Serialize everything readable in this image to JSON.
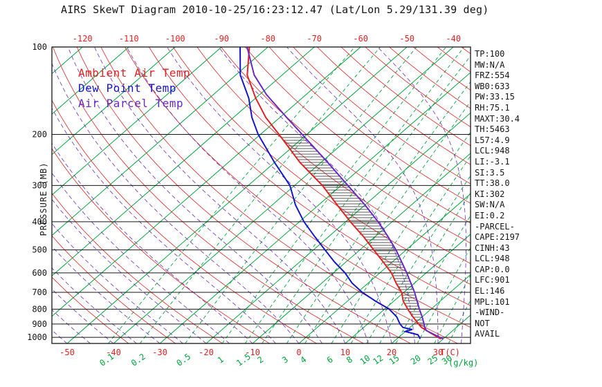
{
  "title": "AIRS SkewT Diagram 2010-10-25/16:23:12.47 (Lat/Lon 5.29/131.39 deg)",
  "legend": {
    "ambient": "Ambient Air Temp",
    "dew": "Dew Point Temp",
    "parcel": "Air Parcel Temp"
  },
  "axis": {
    "pressure_label": "PRESSURE (MB)",
    "temp_unit": "T(C)",
    "mixing_unit": "(g/kg)"
  },
  "stats_panel": {
    "lines": [
      "TP:100",
      "MW:N/A",
      "FRZ:554",
      "WB0:633",
      "PW:33.15",
      "RH:75.1",
      "MAXT:30.4",
      "TH:5463",
      "L57:4.9",
      "LCL:948",
      "LI:-3.1",
      "SI:3.5",
      "TT:38.0",
      "KI:302",
      "SW:N/A",
      "EI:0.2",
      "-PARCEL-",
      "CAPE:2197",
      "CINH:43",
      "LCL:948",
      "CAP:0.0",
      "LFC:901",
      "EL:146",
      "MPL:101",
      "-WIND-",
      "NOT",
      "AVAIL"
    ]
  },
  "colors": {
    "green": "#00a53c",
    "red": "#e02222",
    "blue": "#1515cd",
    "purple": "#6a28c4",
    "black": "#151515",
    "hatch": "#222222",
    "title": "#151515"
  },
  "chart_data": {
    "type": "line",
    "subtype": "skewt-logp",
    "title": "AIRS SkewT Diagram 2010-10-25/16:23:12.47 (Lat/Lon 5.29/131.39 deg)",
    "pressure_axis": {
      "label": "PRESSURE (MB)",
      "scale": "log",
      "range": [
        100,
        1050
      ],
      "ticks": [
        100,
        200,
        300,
        400,
        500,
        600,
        700,
        800,
        900,
        1000
      ]
    },
    "temp_axis": {
      "unit": "T(C)",
      "top_labels": [
        -120,
        -110,
        -100,
        -90,
        -80,
        -70,
        -60,
        -50,
        -40
      ],
      "bottom_labels": [
        -50,
        -40,
        -30,
        -20,
        -10,
        0,
        10,
        20,
        30
      ],
      "isotherm_range": [
        -160,
        40
      ],
      "isotherm_step": 10
    },
    "mixing_ratio_axis": {
      "unit": "(g/kg)",
      "values": [
        0.1,
        0.2,
        0.5,
        1,
        1.5,
        2,
        3,
        4,
        6,
        8,
        10,
        12,
        15,
        20,
        25,
        30
      ]
    },
    "dry_adiabats": {
      "range": [
        -40,
        190
      ],
      "step": 10
    },
    "moist_adiabats": {
      "range": [
        -60,
        35
      ],
      "step": 5
    },
    "cape_hatch": {
      "p_top": 205,
      "p_bottom": 945
    },
    "series": [
      {
        "name": "Ambient Air Temp",
        "color_key": "red",
        "points": [
          [
            1013,
            29.5
          ],
          [
            1000,
            28.5
          ],
          [
            975,
            26.5
          ],
          [
            950,
            24.5
          ],
          [
            925,
            22.5
          ],
          [
            900,
            21
          ],
          [
            850,
            18
          ],
          [
            800,
            15
          ],
          [
            750,
            12
          ],
          [
            700,
            9.5
          ],
          [
            650,
            6
          ],
          [
            600,
            2.5
          ],
          [
            550,
            -2
          ],
          [
            500,
            -7
          ],
          [
            450,
            -12.5
          ],
          [
            400,
            -19
          ],
          [
            350,
            -26
          ],
          [
            300,
            -34
          ],
          [
            250,
            -44.5
          ],
          [
            200,
            -56
          ],
          [
            175,
            -63
          ],
          [
            150,
            -70
          ],
          [
            125,
            -77.5
          ],
          [
            100,
            -84
          ]
        ]
      },
      {
        "name": "Dew Point Temp",
        "color_key": "blue",
        "points": [
          [
            1013,
            25
          ],
          [
            1000,
            24.5
          ],
          [
            980,
            23.5
          ],
          [
            955,
            20
          ],
          [
            940,
            21
          ],
          [
            925,
            18.5
          ],
          [
            900,
            17
          ],
          [
            850,
            14.5
          ],
          [
            800,
            11
          ],
          [
            750,
            6
          ],
          [
            700,
            1
          ],
          [
            650,
            -3.5
          ],
          [
            600,
            -7.5
          ],
          [
            550,
            -12.5
          ],
          [
            500,
            -17.5
          ],
          [
            450,
            -23
          ],
          [
            400,
            -29
          ],
          [
            350,
            -35
          ],
          [
            300,
            -41
          ],
          [
            250,
            -50
          ],
          [
            200,
            -60.5
          ],
          [
            175,
            -66
          ],
          [
            150,
            -71.5
          ],
          [
            125,
            -79
          ],
          [
            100,
            -86
          ]
        ]
      },
      {
        "name": "Air Parcel Temp",
        "color_key": "purple",
        "points": [
          [
            1013,
            30
          ],
          [
            1000,
            28.9
          ],
          [
            975,
            26.7
          ],
          [
            948,
            24.3
          ],
          [
            925,
            23.2
          ],
          [
            900,
            22.2
          ],
          [
            850,
            20
          ],
          [
            800,
            17.5
          ],
          [
            750,
            15
          ],
          [
            700,
            12.3
          ],
          [
            650,
            9.2
          ],
          [
            600,
            5.8
          ],
          [
            550,
            2
          ],
          [
            500,
            -2.2
          ],
          [
            450,
            -7.2
          ],
          [
            400,
            -13
          ],
          [
            350,
            -20
          ],
          [
            300,
            -28.5
          ],
          [
            250,
            -38.5
          ],
          [
            200,
            -51
          ],
          [
            175,
            -58.5
          ],
          [
            150,
            -67
          ],
          [
            146,
            -68.5
          ],
          [
            125,
            -76
          ],
          [
            100,
            -84.5
          ]
        ]
      }
    ]
  }
}
